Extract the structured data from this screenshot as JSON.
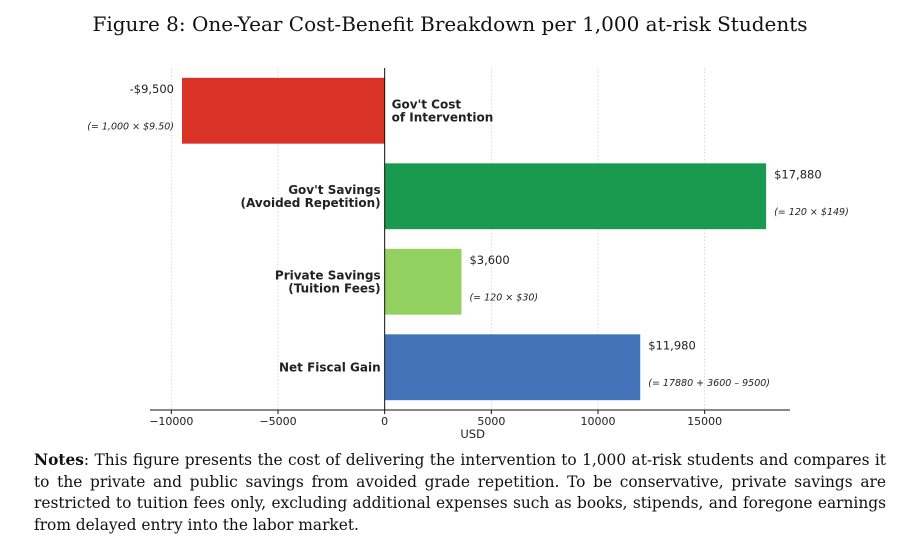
{
  "figure": {
    "title": "Figure 8: One-Year Cost-Benefit Breakdown per 1,000 at-risk Students"
  },
  "notes": {
    "label": "Notes",
    "text": ": This figure presents the cost of delivering the intervention to 1,000 at-risk students and compares it to the private and public savings from avoided grade repetition. To be conservative, private savings are restricted to tuition fees only, excluding additional expenses such as books, stipends, and foregone earnings from delayed entry into the labor market."
  },
  "chart_data": {
    "type": "bar",
    "orientation": "horizontal",
    "title": "",
    "xlabel": "USD",
    "ylabel": "",
    "xlim": [
      -11000,
      19000
    ],
    "xticks": [
      -10000,
      -5000,
      0,
      5000,
      10000,
      15000
    ],
    "xtick_labels": [
      "−10000",
      "−5000",
      "0",
      "5000",
      "10000",
      "15000"
    ],
    "grid": "x-dotted",
    "bars": [
      {
        "category": "Gov't Cost\nof Intervention",
        "value": -9500,
        "value_label": "-$9,500",
        "formula": "(= 1,000 × $9.50)",
        "color": "#d93328"
      },
      {
        "category": "Gov't Savings\n(Avoided Repetition)",
        "value": 17880,
        "value_label": "$17,880",
        "formula": "(= 120 × $149)",
        "color": "#1a9a4f"
      },
      {
        "category": "Private Savings\n(Tuition Fees)",
        "value": 3600,
        "value_label": "$3,600",
        "formula": "(= 120 × $30)",
        "color": "#92d060"
      },
      {
        "category": "Net Fiscal Gain",
        "value": 11980,
        "value_label": "$11,980",
        "formula": "(= 17880 + 3600 – 9500)",
        "color": "#4372b8"
      }
    ]
  }
}
